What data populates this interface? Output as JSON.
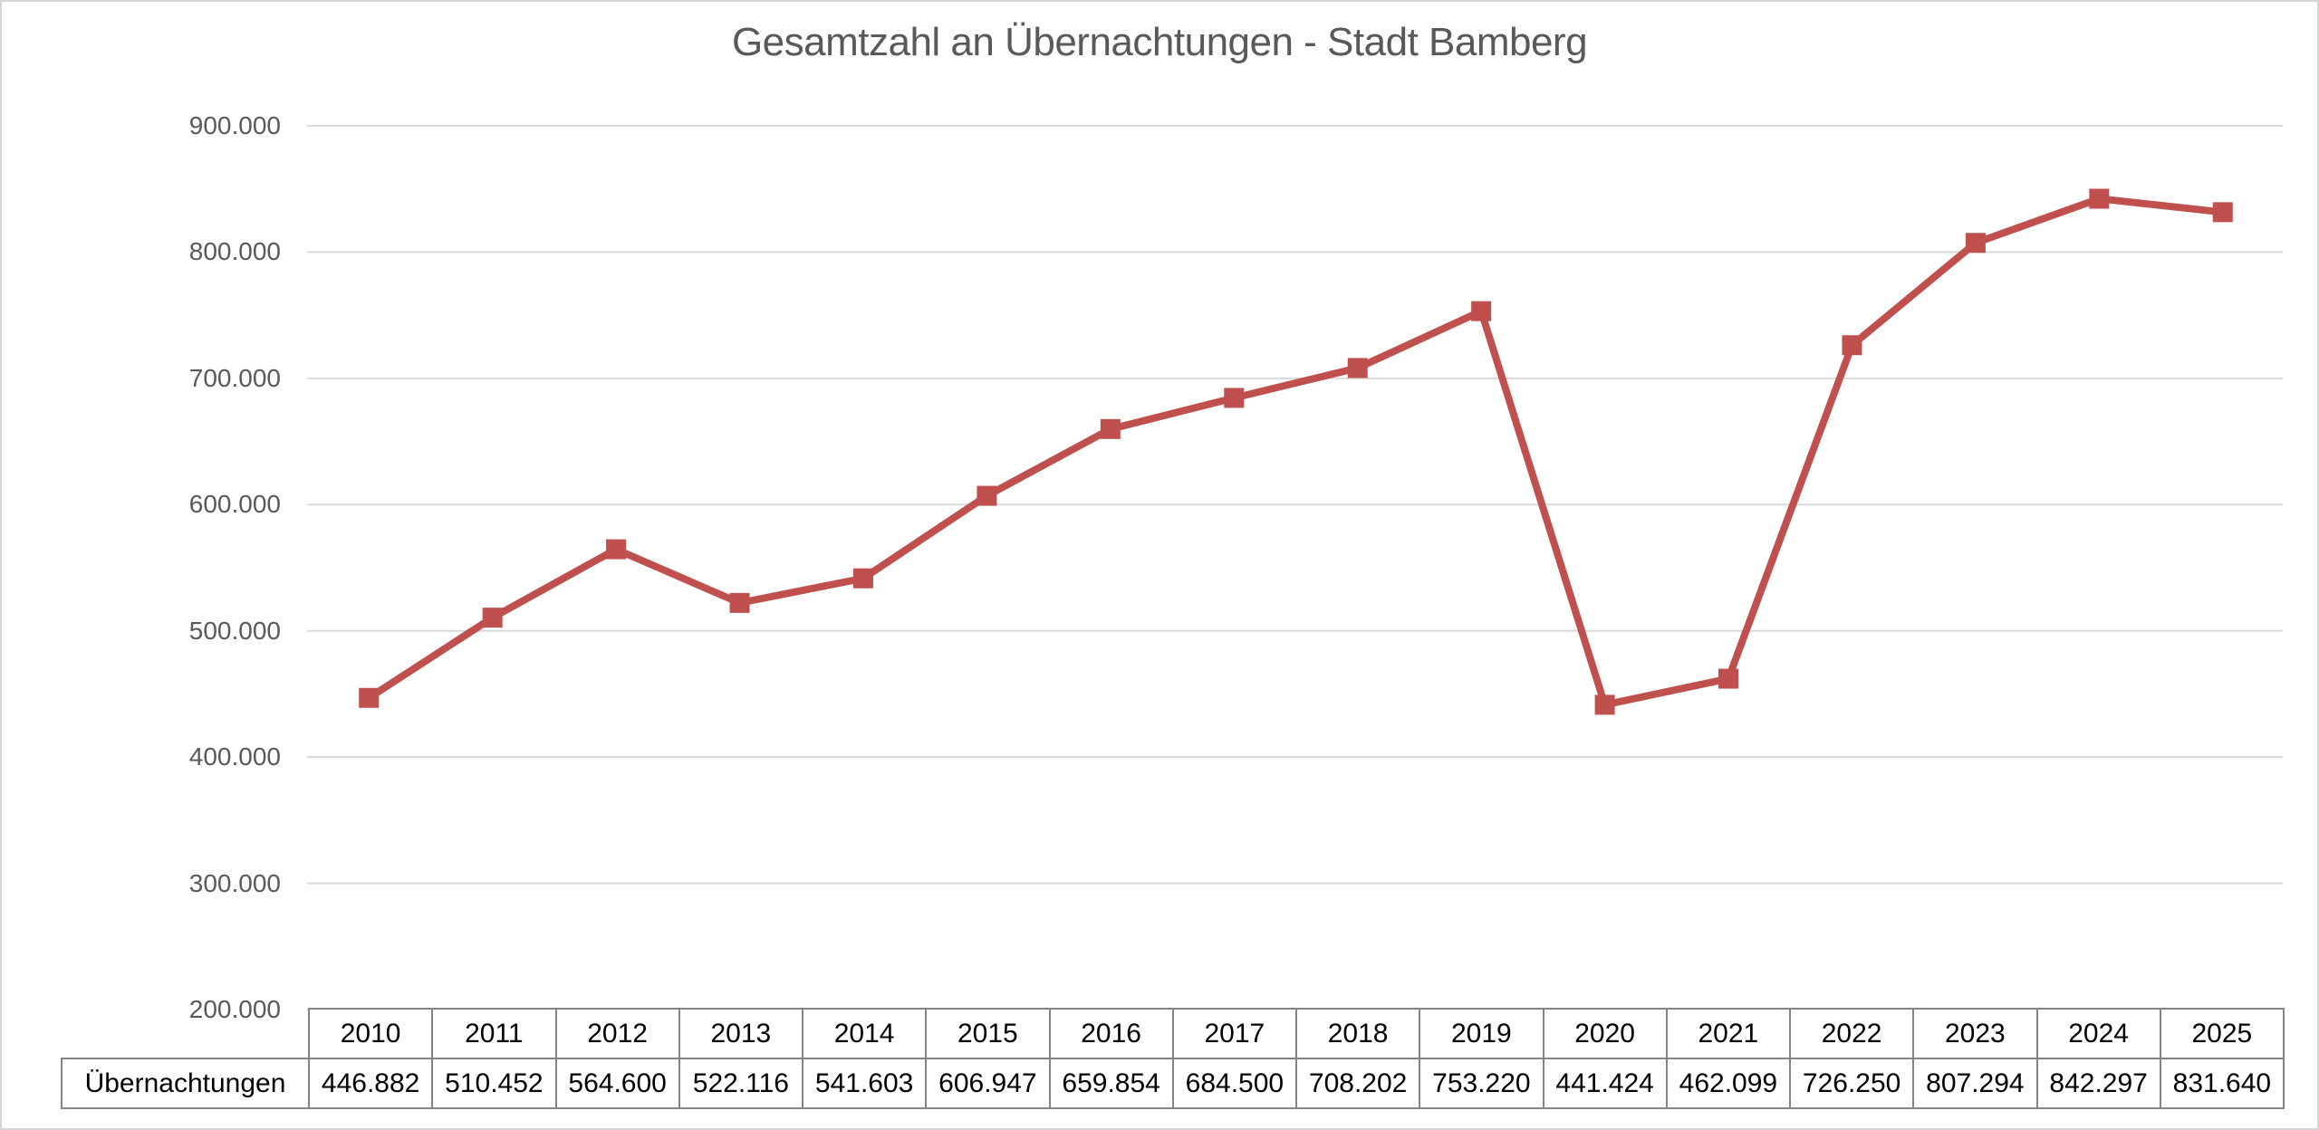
{
  "chart_data": {
    "type": "line",
    "title": "Gesamtzahl an Übernachtungen - Stadt Bamberg",
    "series_name": "Übernachtungen",
    "categories": [
      "2010",
      "2011",
      "2012",
      "2013",
      "2014",
      "2015",
      "2016",
      "2017",
      "2018",
      "2019",
      "2020",
      "2021",
      "2022",
      "2023",
      "2024",
      "2025"
    ],
    "values": [
      446882,
      510452,
      564600,
      522116,
      541603,
      606947,
      659854,
      684500,
      708202,
      753220,
      441424,
      462099,
      726250,
      807294,
      842297,
      831640
    ],
    "values_formatted": [
      "446.882",
      "510.452",
      "564.600",
      "522.116",
      "541.603",
      "606.947",
      "659.854",
      "684.500",
      "708.202",
      "753.220",
      "441.424",
      "462.099",
      "726.250",
      "807.294",
      "842.297",
      "831.640"
    ],
    "xlabel": "",
    "ylabel": "",
    "ylim": [
      200000,
      900000
    ],
    "ytick_step": 100000,
    "ytick_labels": [
      "200.000",
      "300.000",
      "400.000",
      "500.000",
      "600.000",
      "700.000",
      "800.000",
      "900.000"
    ],
    "grid": true,
    "legend_position": "none",
    "marker": "square",
    "colors": {
      "line": "#C0504D",
      "marker": "#C0504D",
      "gridline": "#D9D9D9",
      "title_text": "#595959",
      "axis_label_text": "#595959",
      "table_border": "#848484",
      "table_text": "#000000",
      "page_border": "#D6D6D6"
    }
  }
}
